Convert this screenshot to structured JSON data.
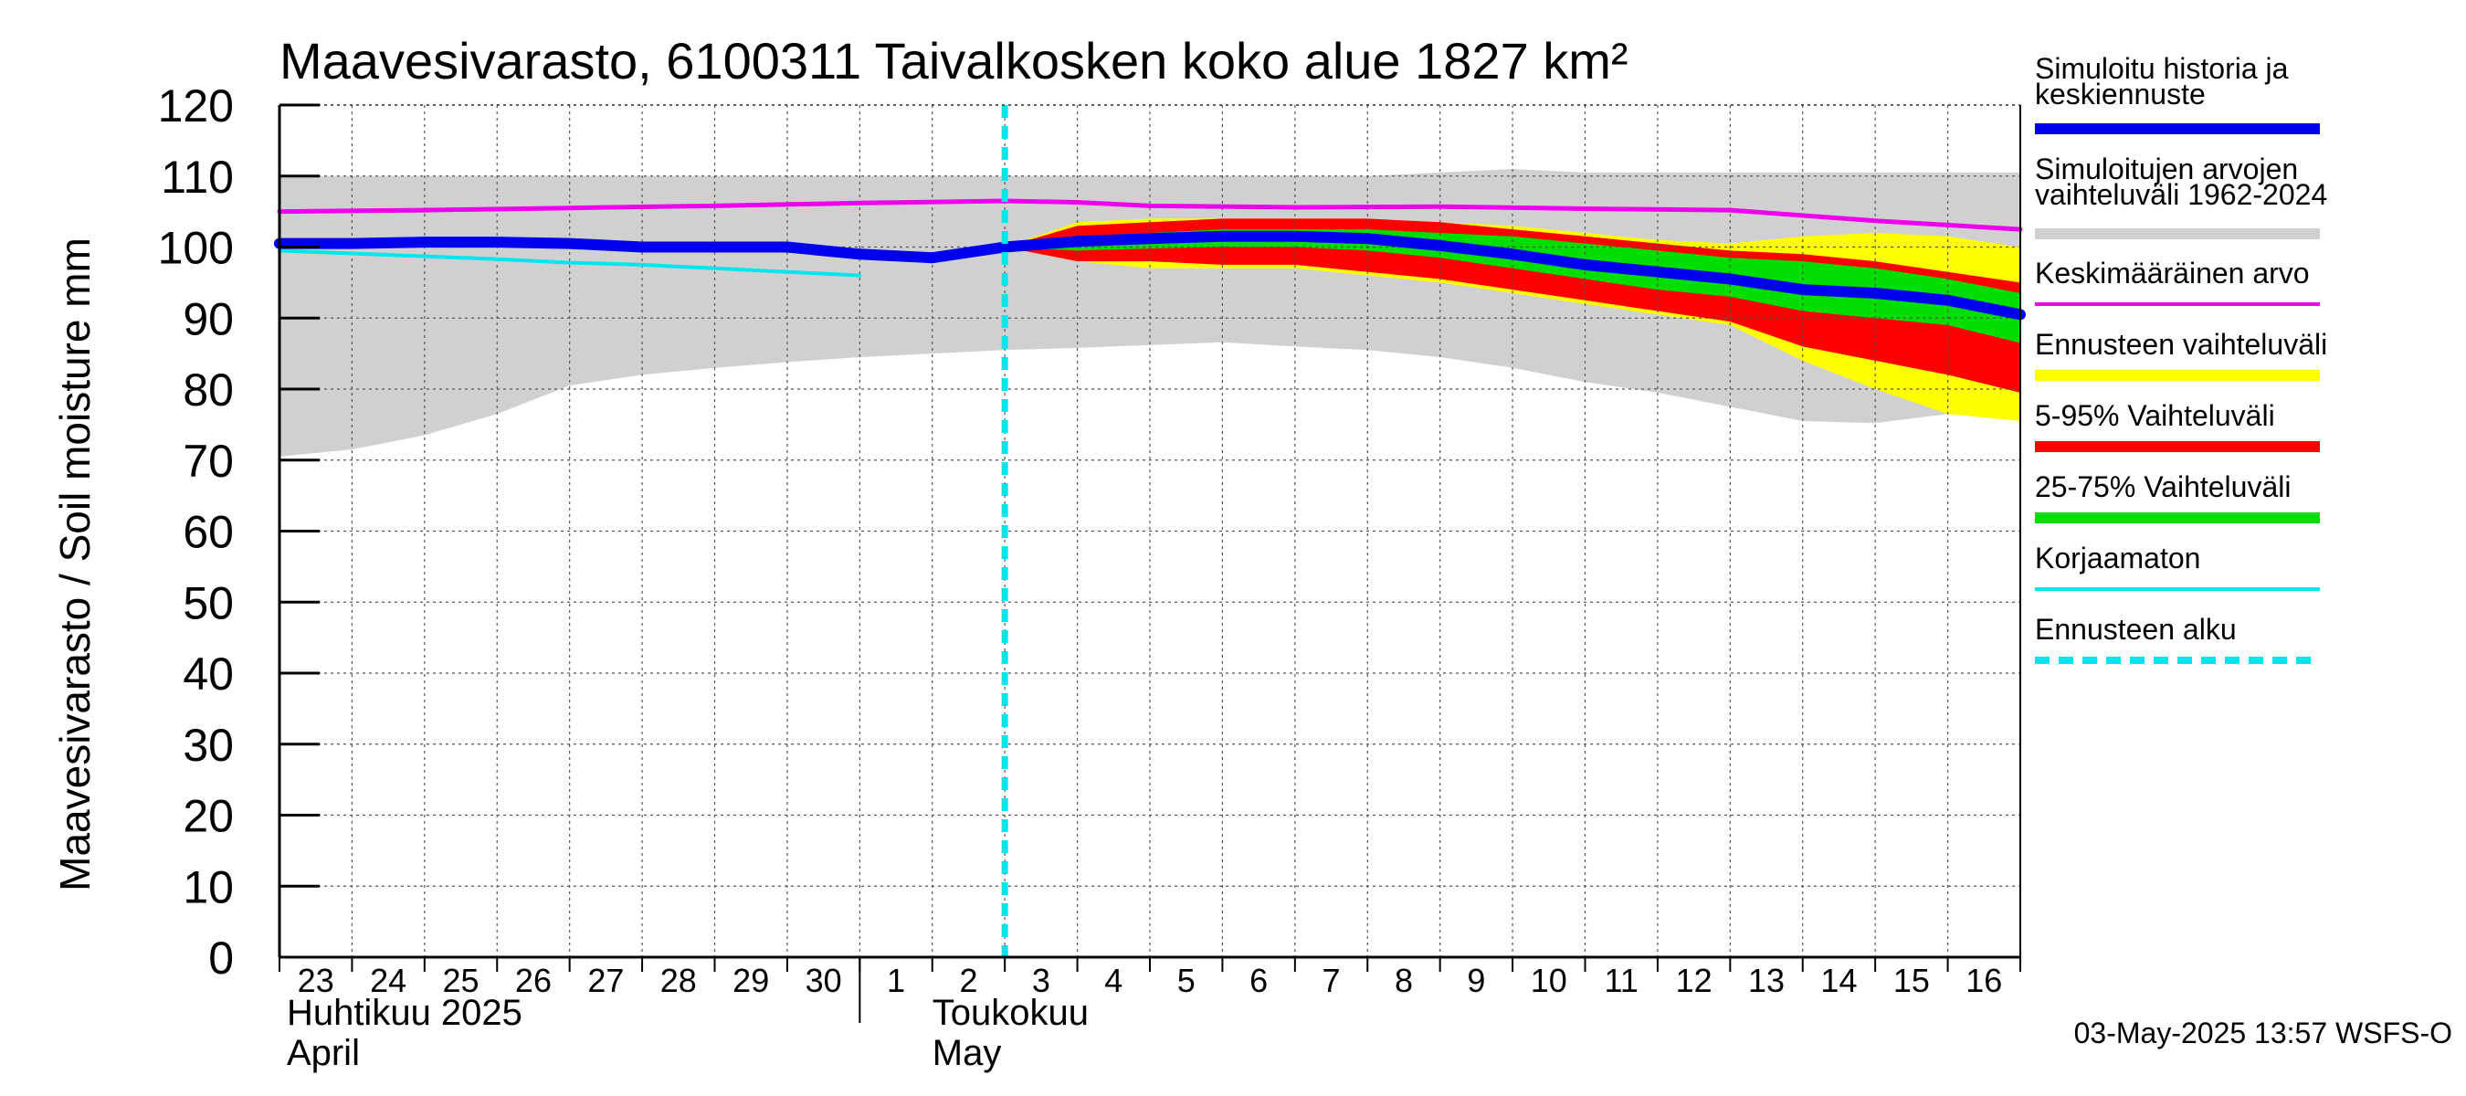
{
  "chart_data": {
    "type": "area",
    "title": "Maavesivarasto, 6100311 Taivalkosken koko alue 1827 km²",
    "ylabel": "Maavesivarasto / Soil moisture   mm",
    "ylim": [
      0,
      120
    ],
    "yticks": [
      0,
      10,
      20,
      30,
      40,
      50,
      60,
      70,
      80,
      90,
      100,
      110,
      120
    ],
    "xlim": [
      0,
      24
    ],
    "grid": true,
    "x_tick_labels": [
      {
        "label": "23",
        "x": 0.5
      },
      {
        "label": "24",
        "x": 1.5
      },
      {
        "label": "25",
        "x": 2.5
      },
      {
        "label": "26",
        "x": 3.5
      },
      {
        "label": "27",
        "x": 4.5
      },
      {
        "label": "28",
        "x": 5.5
      },
      {
        "label": "29",
        "x": 6.5
      },
      {
        "label": "30",
        "x": 7.5
      },
      {
        "label": "1",
        "x": 8.5
      },
      {
        "label": "2",
        "x": 9.5
      },
      {
        "label": "3",
        "x": 10.5
      },
      {
        "label": "4",
        "x": 11.5
      },
      {
        "label": "5",
        "x": 12.5
      },
      {
        "label": "6",
        "x": 13.5
      },
      {
        "label": "7",
        "x": 14.5
      },
      {
        "label": "8",
        "x": 15.5
      },
      {
        "label": "9",
        "x": 16.5
      },
      {
        "label": "10",
        "x": 17.5
      },
      {
        "label": "11",
        "x": 18.5
      },
      {
        "label": "12",
        "x": 19.5
      },
      {
        "label": "13",
        "x": 20.5
      },
      {
        "label": "14",
        "x": 21.5
      },
      {
        "label": "15",
        "x": 22.5
      },
      {
        "label": "16",
        "x": 23.5
      }
    ],
    "month_labels": [
      {
        "line1": "Huhtikuu  2025",
        "line2": "April",
        "x": 0.1
      },
      {
        "line1": "Toukokuu",
        "line2": "May",
        "x": 9.0
      }
    ],
    "month_divider_x": 8,
    "forecast_start_x": 10,
    "series": [
      {
        "name": "Simuloitujen arvojen vaihteluväli 1962-2024",
        "kind": "band",
        "color": "#d0d0d0",
        "x": [
          0,
          1,
          2,
          3,
          4,
          5,
          6,
          7,
          8,
          9,
          10,
          11,
          12,
          13,
          14,
          15,
          16,
          17,
          18,
          19,
          20,
          21,
          22,
          23,
          24
        ],
        "lower": [
          70.5,
          71.5,
          73.5,
          76.5,
          80.5,
          82,
          83,
          83.8,
          84.5,
          85,
          85.5,
          85.8,
          86.2,
          86.6,
          86,
          85.5,
          84.5,
          83,
          81,
          79.5,
          77.5,
          75.5,
          75.2,
          76.5,
          78
        ],
        "upper": [
          110,
          110,
          110,
          110,
          110,
          110,
          110,
          110,
          110,
          110,
          110,
          110,
          110,
          110,
          110,
          110,
          110.5,
          111,
          110.5,
          110.5,
          110.5,
          110.5,
          110.5,
          110.5,
          110.5
        ]
      },
      {
        "name": "Ennusteen vaihteluväli",
        "kind": "band",
        "color": "#ffff00",
        "x": [
          10,
          11,
          12,
          13,
          14,
          15,
          16,
          17,
          18,
          19,
          20,
          21,
          22,
          23,
          24
        ],
        "lower": [
          100,
          98,
          97,
          97,
          97,
          96,
          95,
          93.5,
          92,
          90.5,
          89,
          84,
          80,
          76.5,
          75.5
        ],
        "upper": [
          100,
          103.5,
          104,
          104,
          104,
          104,
          103.5,
          103,
          102,
          101,
          100.5,
          101.5,
          102,
          101.5,
          100
        ]
      },
      {
        "name": "5-95% Vaihteluväli",
        "kind": "band",
        "color": "#ff0000",
        "x": [
          10,
          11,
          12,
          13,
          14,
          15,
          16,
          17,
          18,
          19,
          20,
          21,
          22,
          23,
          24
        ],
        "lower": [
          100,
          98,
          98,
          97.5,
          97.5,
          96.5,
          95.5,
          94,
          92.5,
          91,
          89.5,
          86,
          84,
          82,
          79.5
        ],
        "upper": [
          100,
          103,
          103.5,
          104,
          104,
          104,
          103.5,
          102.5,
          101.5,
          100.5,
          99.5,
          99,
          98,
          96.5,
          95
        ]
      },
      {
        "name": "25-75% Vaihteluväli",
        "kind": "band",
        "color": "#00dd00",
        "x": [
          10,
          11,
          12,
          13,
          14,
          15,
          16,
          17,
          18,
          19,
          20,
          21,
          22,
          23,
          24
        ],
        "lower": [
          100,
          99.5,
          99.8,
          100,
          100,
          99.5,
          98.5,
          97,
          95.5,
          94,
          93,
          91,
          90,
          89,
          86.5
        ],
        "upper": [
          100,
          101.5,
          102,
          102.5,
          102.5,
          102.5,
          102,
          101.5,
          100.5,
          99.5,
          98.5,
          98,
          97,
          95.5,
          93.5
        ]
      },
      {
        "name": "Keskimääräinen arvo",
        "kind": "line",
        "color": "#ee00ee",
        "width": 5,
        "x": [
          0,
          2,
          4,
          6,
          8,
          10,
          11,
          12,
          14,
          16,
          18,
          20,
          22,
          24
        ],
        "values": [
          105,
          105.2,
          105.5,
          105.8,
          106.2,
          106.5,
          106.3,
          105.8,
          105.6,
          105.7,
          105.4,
          105.2,
          103.7,
          102.5
        ]
      },
      {
        "name": "Korjaamaton",
        "kind": "line",
        "color": "#00e5ee",
        "width": 4,
        "x": [
          0,
          1,
          2,
          3,
          4,
          5,
          6,
          7,
          8
        ],
        "values": [
          99.5,
          99.1,
          98.7,
          98.3,
          97.8,
          97.5,
          97,
          96.5,
          96
        ]
      },
      {
        "name": "Simuloitu historia ja keskiennuste",
        "kind": "line",
        "color": "#0000ee",
        "width": 12,
        "x": [
          0,
          1,
          2,
          3,
          4,
          5,
          6,
          7,
          8,
          9,
          10,
          11,
          12,
          13,
          14,
          15,
          16,
          17,
          18,
          19,
          20,
          21,
          22,
          23,
          24
        ],
        "values": [
          100.5,
          100.5,
          100.7,
          100.7,
          100.5,
          100,
          100,
          100,
          99,
          98.5,
          100,
          100.8,
          101.2,
          101.5,
          101.5,
          101.2,
          100.2,
          99,
          97.5,
          96.5,
          95.5,
          94,
          93.5,
          92.5,
          90.5
        ]
      }
    ],
    "legend": {
      "placement": "right",
      "items": [
        {
          "label_lines": [
            "Simuloitu historia ja",
            "keskiennuste"
          ],
          "color": "#0000ee",
          "style": "thick"
        },
        {
          "label_lines": [
            "Simuloitujen arvojen",
            "vaihteluväli 1962-2024"
          ],
          "color": "#d0d0d0",
          "style": "thick"
        },
        {
          "label_lines": [
            "Keskimääräinen arvo"
          ],
          "color": "#ee00ee",
          "style": "thin"
        },
        {
          "label_lines": [
            "Ennusteen vaihteluväli"
          ],
          "color": "#ffff00",
          "style": "thick"
        },
        {
          "label_lines": [
            "5-95% Vaihteluväli"
          ],
          "color": "#ff0000",
          "style": "thick"
        },
        {
          "label_lines": [
            "25-75% Vaihteluväli"
          ],
          "color": "#00dd00",
          "style": "thick"
        },
        {
          "label_lines": [
            "Korjaamaton"
          ],
          "color": "#00e5ee",
          "style": "thin"
        },
        {
          "label_lines": [
            "Ennusteen alku"
          ],
          "color": "#00e5ee",
          "style": "dashed"
        }
      ]
    },
    "footer": "03-May-2025 13:57 WSFS-O"
  }
}
